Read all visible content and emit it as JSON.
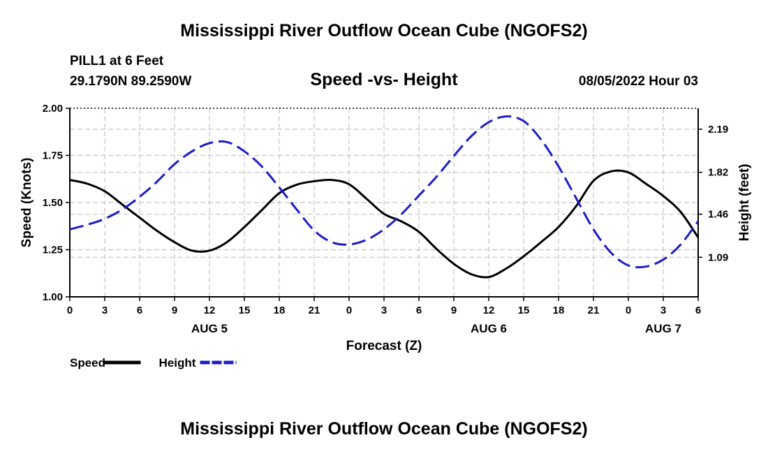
{
  "header": {
    "title": "Mississippi River Outflow Ocean Cube (NGOFS2)",
    "station": "PILL1 at 6 Feet",
    "coords": "29.1790N  89.2590W",
    "subtitle": "Speed -vs- Height",
    "datetime": "08/05/2022 Hour 03"
  },
  "footer": {
    "title": "Mississippi River Outflow Ocean Cube (NGOFS2)"
  },
  "chart_data": {
    "type": "line",
    "title": "Speed -vs- Height",
    "xlabel": "Forecast (Z)",
    "ylabel": "Speed (Knots)",
    "y2label": "Height (feet)",
    "x_range": [
      0,
      54
    ],
    "ylim": [
      1.0,
      2.0
    ],
    "y2lim": [
      0.75,
      2.37
    ],
    "x_ticks": [
      0,
      3,
      6,
      9,
      12,
      15,
      18,
      21,
      24,
      27,
      30,
      33,
      36,
      39,
      42,
      45,
      48,
      51,
      54
    ],
    "x_tick_labels": [
      "0",
      "3",
      "6",
      "9",
      "12",
      "15",
      "18",
      "21",
      "0",
      "3",
      "6",
      "9",
      "12",
      "15",
      "18",
      "21",
      "0",
      "3",
      "6"
    ],
    "date_labels": [
      {
        "x": 12,
        "label": "AUG 5"
      },
      {
        "x": 36,
        "label": "AUG 6"
      },
      {
        "x": 51,
        "label": "AUG 7"
      }
    ],
    "y_ticks": [
      1.0,
      1.25,
      1.5,
      1.75,
      2.0
    ],
    "y_tick_labels": [
      "1.00",
      "1.25",
      "1.50",
      "1.75",
      "2.00"
    ],
    "y2_ticks": [
      1.09,
      1.46,
      1.82,
      2.19
    ],
    "y2_tick_labels": [
      "1.09",
      "1.46",
      "1.82",
      "2.19"
    ],
    "grid": true,
    "legend_position": "bottom-left",
    "series": [
      {
        "name": "Speed",
        "axis": "left",
        "color": "#000000",
        "dashed": false,
        "x": [
          0,
          1.5,
          3,
          4.5,
          6,
          7.5,
          9,
          10.5,
          12,
          13.5,
          15,
          16.5,
          18,
          19.5,
          21,
          22.5,
          24,
          25.5,
          27,
          28.5,
          30,
          31.5,
          33,
          34.5,
          36,
          37.5,
          39,
          40.5,
          42,
          43.5,
          45,
          46.5,
          48,
          49.5,
          51,
          52.5,
          54
        ],
        "values": [
          1.62,
          1.6,
          1.56,
          1.49,
          1.42,
          1.35,
          1.29,
          1.245,
          1.245,
          1.29,
          1.37,
          1.46,
          1.55,
          1.595,
          1.613,
          1.62,
          1.597,
          1.52,
          1.44,
          1.4,
          1.345,
          1.255,
          1.175,
          1.12,
          1.105,
          1.15,
          1.215,
          1.29,
          1.37,
          1.48,
          1.615,
          1.665,
          1.66,
          1.6,
          1.535,
          1.45,
          1.315
        ]
      },
      {
        "name": "Height",
        "axis": "right",
        "color": "#1c1cc8",
        "dashed": true,
        "x": [
          0,
          1.5,
          3,
          4.5,
          6,
          7.5,
          9,
          10.5,
          12,
          13.5,
          15,
          16.5,
          18,
          19.5,
          21,
          22.5,
          24,
          25.5,
          27,
          28.5,
          30,
          31.5,
          33,
          34.5,
          36,
          37.5,
          39,
          40.5,
          42,
          43.5,
          45,
          46.5,
          48,
          49.5,
          51,
          52.5,
          54
        ],
        "values": [
          1.33,
          1.37,
          1.42,
          1.5,
          1.61,
          1.74,
          1.89,
          2.0,
          2.07,
          2.08,
          2.0,
          1.87,
          1.69,
          1.5,
          1.32,
          1.22,
          1.2,
          1.24,
          1.33,
          1.46,
          1.62,
          1.78,
          1.96,
          2.13,
          2.25,
          2.3,
          2.26,
          2.1,
          1.87,
          1.6,
          1.33,
          1.13,
          1.02,
          1.01,
          1.07,
          1.2,
          1.4
        ]
      }
    ]
  }
}
